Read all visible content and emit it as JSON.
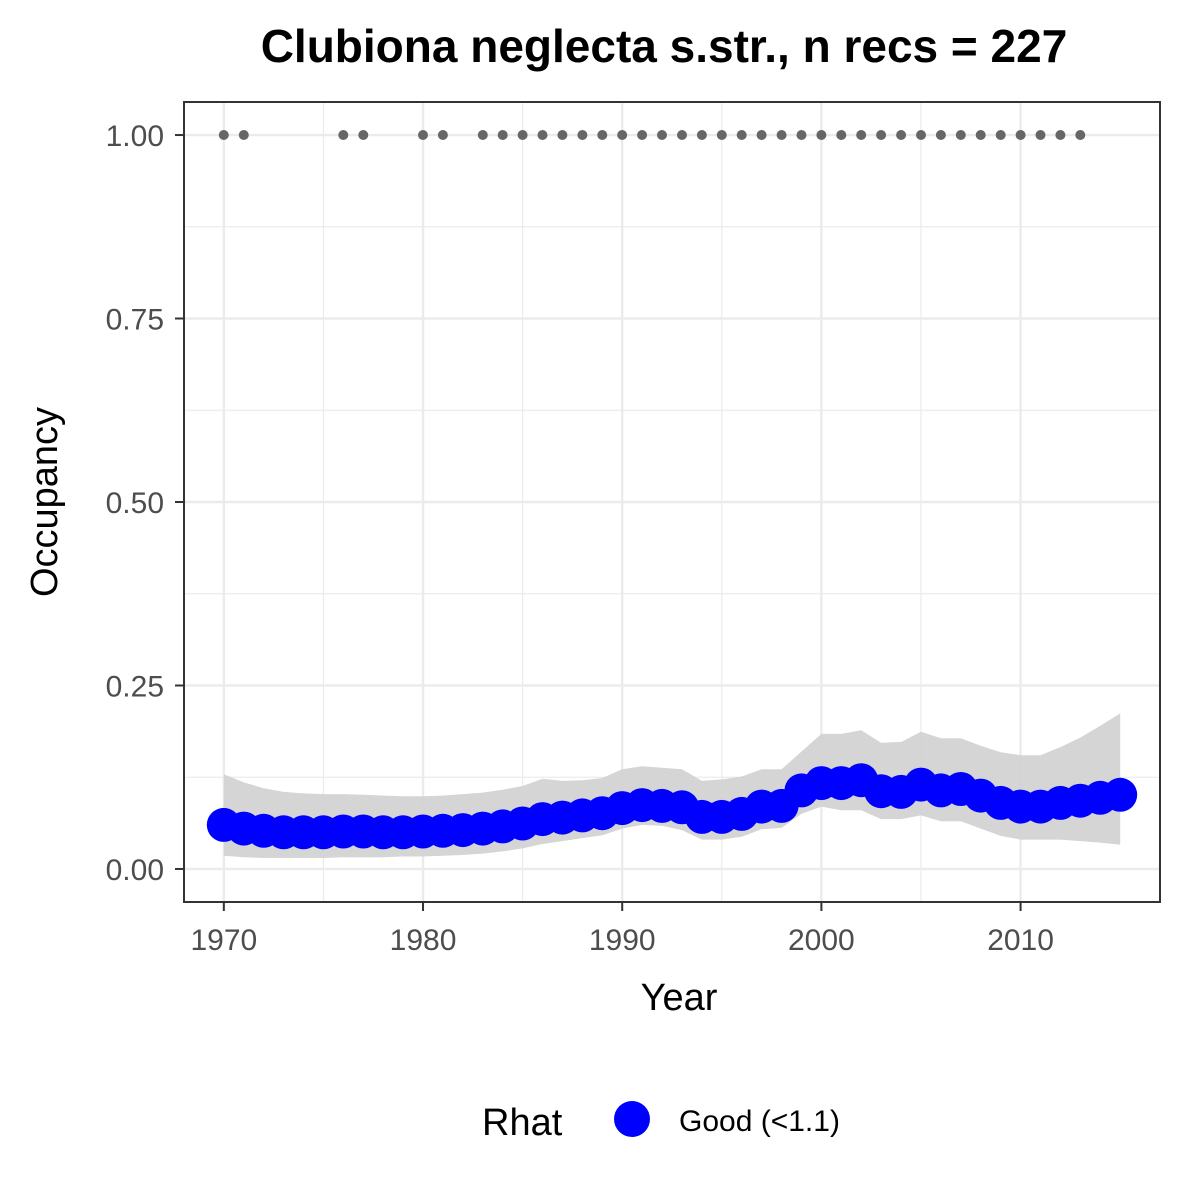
{
  "chart_data": {
    "type": "line",
    "title": "Clubiona neglecta s.str., n recs = 227",
    "xlabel": "Year",
    "ylabel": "Occupancy",
    "xlim": [
      1968,
      2017
    ],
    "ylim": [
      -0.045,
      1.045
    ],
    "x_ticks": [
      1970,
      1980,
      1990,
      2000,
      2010
    ],
    "x_tick_labels": [
      "1970",
      "1980",
      "1990",
      "2000",
      "2010"
    ],
    "y_ticks": [
      0,
      0.25,
      0.5,
      0.75,
      1
    ],
    "y_tick_labels": [
      "0.00",
      "0.25",
      "0.50",
      "0.75",
      "1.00"
    ],
    "grid": true,
    "legend_position": "bottom",
    "legend": {
      "title": "Rhat",
      "entries": [
        {
          "label": "Good (<1.1)",
          "color": "#0000ff"
        }
      ]
    },
    "colors": {
      "series": "#0000ff",
      "band": "#d3d3d3",
      "records": "#666666",
      "grid": "#ebebeb",
      "panel_border": "#333333"
    },
    "series": [
      {
        "x": [
          1970,
          1971,
          1972,
          1973,
          1974,
          1975,
          1976,
          1977,
          1978,
          1979,
          1980,
          1981,
          1982,
          1983,
          1984,
          1985,
          1986,
          1987,
          1988,
          1989,
          1990,
          1991,
          1992,
          1993,
          1994,
          1995,
          1996,
          1997,
          1998,
          1999,
          2000,
          2001,
          2002,
          2003,
          2004,
          2005,
          2006,
          2007,
          2008,
          2009,
          2010,
          2011,
          2012,
          2013,
          2014,
          2015
        ],
        "values": [
          0.06,
          0.055,
          0.052,
          0.05,
          0.05,
          0.05,
          0.051,
          0.051,
          0.05,
          0.05,
          0.051,
          0.052,
          0.053,
          0.055,
          0.058,
          0.062,
          0.068,
          0.07,
          0.073,
          0.076,
          0.083,
          0.087,
          0.086,
          0.084,
          0.071,
          0.071,
          0.075,
          0.085,
          0.086,
          0.107,
          0.117,
          0.117,
          0.121,
          0.106,
          0.105,
          0.115,
          0.107,
          0.109,
          0.1,
          0.09,
          0.085,
          0.085,
          0.09,
          0.093,
          0.097,
          0.101
        ],
        "lower": [
          0.018,
          0.016,
          0.015,
          0.015,
          0.015,
          0.015,
          0.016,
          0.016,
          0.016,
          0.017,
          0.017,
          0.018,
          0.019,
          0.021,
          0.024,
          0.028,
          0.034,
          0.038,
          0.042,
          0.046,
          0.055,
          0.06,
          0.059,
          0.053,
          0.04,
          0.04,
          0.044,
          0.054,
          0.056,
          0.075,
          0.085,
          0.08,
          0.08,
          0.068,
          0.068,
          0.073,
          0.065,
          0.065,
          0.055,
          0.045,
          0.04,
          0.04,
          0.04,
          0.038,
          0.036,
          0.033
        ],
        "upper": [
          0.129,
          0.118,
          0.11,
          0.105,
          0.103,
          0.102,
          0.102,
          0.101,
          0.1,
          0.099,
          0.099,
          0.1,
          0.102,
          0.104,
          0.108,
          0.113,
          0.123,
          0.12,
          0.121,
          0.124,
          0.136,
          0.14,
          0.138,
          0.136,
          0.12,
          0.122,
          0.126,
          0.136,
          0.136,
          0.16,
          0.184,
          0.184,
          0.189,
          0.172,
          0.173,
          0.187,
          0.178,
          0.178,
          0.168,
          0.159,
          0.155,
          0.155,
          0.166,
          0.179,
          0.195,
          0.212
        ]
      }
    ],
    "records": {
      "x": [
        1970,
        1971,
        1976,
        1977,
        1980,
        1981,
        1983,
        1984,
        1985,
        1986,
        1987,
        1988,
        1989,
        1990,
        1991,
        1992,
        1993,
        1994,
        1995,
        1996,
        1997,
        1998,
        1999,
        2000,
        2001,
        2002,
        2003,
        2004,
        2005,
        2006,
        2007,
        2008,
        2009,
        2010,
        2011,
        2012,
        2013
      ],
      "y": 1.0
    }
  }
}
